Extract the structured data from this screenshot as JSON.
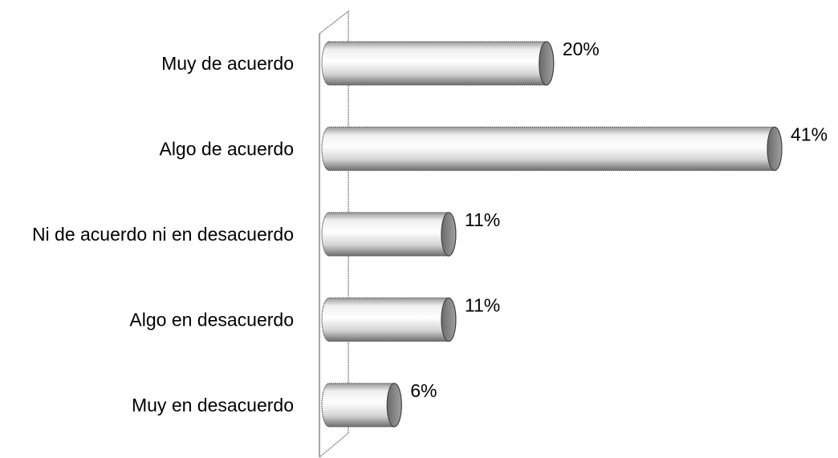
{
  "chart_data": {
    "type": "bar",
    "orientation": "horizontal",
    "style": "3d-cylinder",
    "categories": [
      "Muy de acuerdo",
      "Algo de acuerdo",
      "Ni de acuerdo ni en desacuerdo",
      "Algo en desacuerdo",
      "Muy en desacuerdo"
    ],
    "values": [
      20,
      41,
      11,
      11,
      6
    ],
    "value_labels": [
      "20%",
      "41%",
      "11%",
      "11%",
      "6%"
    ],
    "unit": "%",
    "xlim": [
      0,
      41
    ],
    "grid": false,
    "legend": "none",
    "title": "",
    "xlabel": "",
    "ylabel": ""
  },
  "colors": {
    "bar_light": "#f4f4f4",
    "bar_mid": "#c8c8c8",
    "bar_dark": "#7a7a7a",
    "cap": "#8a8a8a",
    "axis": "#8a8a8a",
    "text": "#000000"
  }
}
